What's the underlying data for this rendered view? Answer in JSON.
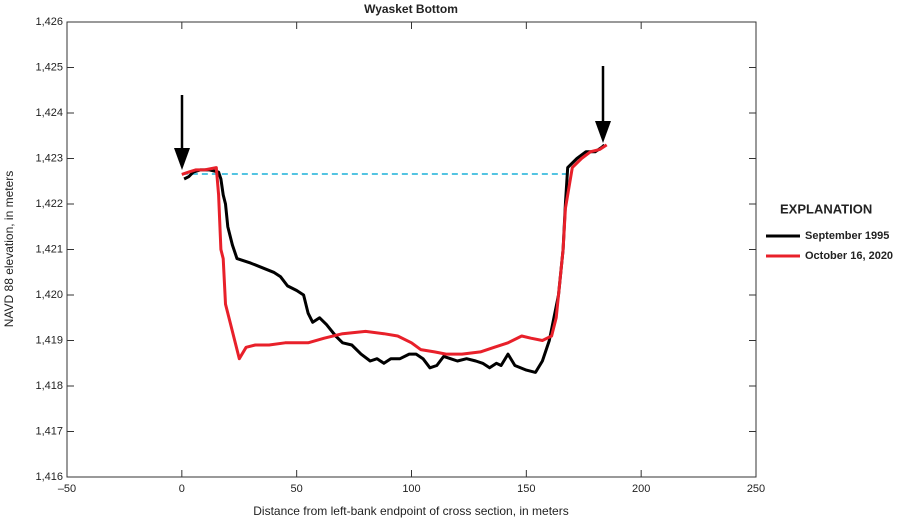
{
  "chart_data": {
    "type": "line",
    "title": "Wyasket Bottom",
    "x_label": "Distance from left-bank endpoint of cross section, in meters",
    "y_label": "NAVD 88 elevation, in meters",
    "legend_title": "EXPLANATION",
    "xlim": [
      -50,
      250
    ],
    "xticks": [
      {
        "value": -50,
        "label": "–50"
      },
      0,
      50,
      100,
      150,
      200,
      250
    ],
    "ylim": [
      1416,
      1426
    ],
    "yticks": [
      {
        "value": 1416,
        "label": "1,416"
      },
      {
        "value": 1417,
        "label": "1,417"
      },
      {
        "value": 1418,
        "label": "1,418"
      },
      {
        "value": 1419,
        "label": "1,419"
      },
      {
        "value": 1420,
        "label": "1,420"
      },
      {
        "value": 1421,
        "label": "1,421"
      },
      {
        "value": 1422,
        "label": "1,422"
      },
      {
        "value": 1423,
        "label": "1,423"
      },
      {
        "value": 1424,
        "label": "1,424"
      },
      {
        "value": 1425,
        "label": "1,425"
      },
      {
        "value": 1426,
        "label": "1,426"
      }
    ],
    "series": [
      {
        "name": "September 1995",
        "color": "#000000",
        "x": [
          1,
          3,
          5,
          8,
          12,
          16,
          17,
          18,
          19,
          20,
          22,
          24,
          30,
          35,
          40,
          43,
          46,
          50,
          53,
          55,
          57,
          60,
          63,
          67,
          70,
          74,
          78,
          82,
          85,
          88,
          91,
          95,
          99,
          102,
          105,
          108,
          111,
          114,
          117,
          120,
          124,
          128,
          131,
          134,
          137,
          139,
          142,
          145,
          150,
          154,
          157,
          160,
          162,
          164,
          166,
          167,
          168,
          172,
          176,
          180,
          183,
          184
        ],
        "values": [
          1422.55,
          1422.6,
          1422.7,
          1422.75,
          1422.75,
          1422.7,
          1422.55,
          1422.2,
          1422.0,
          1421.5,
          1421.1,
          1420.8,
          1420.7,
          1420.6,
          1420.5,
          1420.4,
          1420.2,
          1420.1,
          1420.0,
          1419.6,
          1419.4,
          1419.5,
          1419.35,
          1419.1,
          1418.95,
          1418.9,
          1418.7,
          1418.55,
          1418.6,
          1418.5,
          1418.6,
          1418.6,
          1418.7,
          1418.7,
          1418.6,
          1418.4,
          1418.45,
          1418.65,
          1418.6,
          1418.55,
          1418.6,
          1418.55,
          1418.5,
          1418.4,
          1418.5,
          1418.45,
          1418.7,
          1418.45,
          1418.35,
          1418.3,
          1418.55,
          1419.0,
          1419.5,
          1420.0,
          1421.0,
          1422.0,
          1422.8,
          1423.0,
          1423.15,
          1423.15,
          1423.25,
          1423.3
        ]
      },
      {
        "name": "October 16, 2020",
        "color": "#e8202a",
        "x": [
          0,
          3,
          6,
          10,
          15,
          16,
          17,
          18,
          19,
          21,
          23,
          25,
          28,
          32,
          38,
          45,
          55,
          62,
          70,
          80,
          88,
          94,
          100,
          104,
          110,
          115,
          122,
          130,
          136,
          142,
          148,
          152,
          157,
          161,
          163,
          165,
          166,
          167,
          168,
          170,
          174,
          178,
          182,
          185
        ],
        "values": [
          1422.65,
          1422.7,
          1422.75,
          1422.75,
          1422.8,
          1422.2,
          1421.0,
          1420.8,
          1419.8,
          1419.4,
          1419.0,
          1418.6,
          1418.85,
          1418.9,
          1418.9,
          1418.95,
          1418.95,
          1419.05,
          1419.15,
          1419.2,
          1419.15,
          1419.1,
          1418.95,
          1418.8,
          1418.75,
          1418.7,
          1418.7,
          1418.75,
          1418.85,
          1418.95,
          1419.1,
          1419.05,
          1419.0,
          1419.1,
          1419.5,
          1420.5,
          1421.0,
          1421.9,
          1422.2,
          1422.8,
          1423.0,
          1423.15,
          1423.2,
          1423.3
        ]
      }
    ],
    "reference_lines": [
      {
        "x": [
          0,
          168
        ],
        "y": 1422.66,
        "color": "#1ab0d8"
      }
    ]
  }
}
